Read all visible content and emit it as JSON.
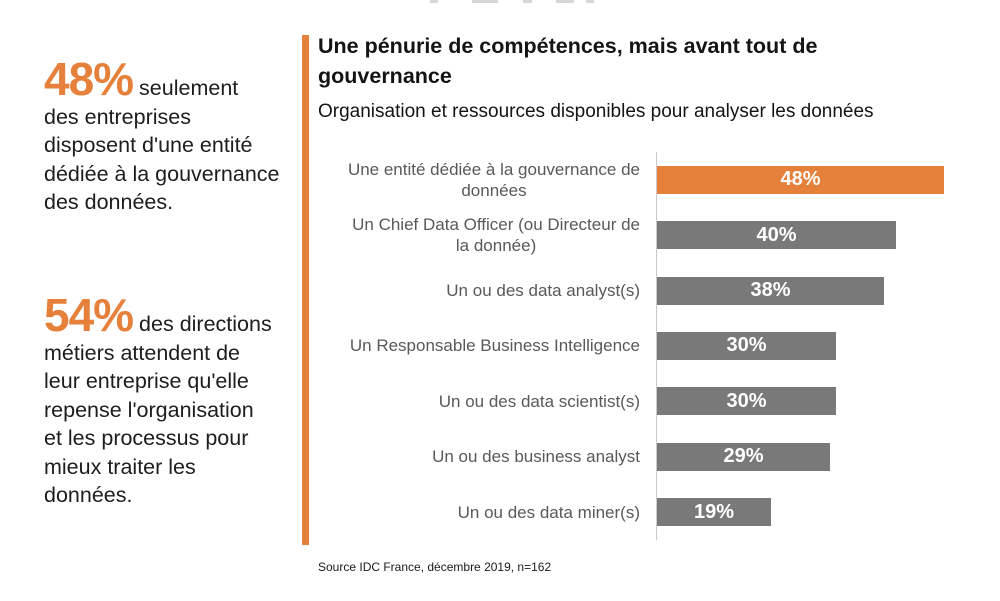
{
  "colors": {
    "accent_orange": "#E5813B",
    "bar_gray": "#797979",
    "category_label": "#595959",
    "axis_line": "#C9C9C9",
    "value_label": "#FFFFFF"
  },
  "left_panel": {
    "stat1": {
      "number": "48%",
      "rest": " seulement\ndes entreprises\ndisposent d'une entité\ndédiée à la gouvernance\ndes données."
    },
    "stat2": {
      "number": "54%",
      "rest": " des directions\nmétiers attendent de\nleur entreprise qu'elle\nrepense l'organisation\net les processus pour\nmieux traiter les\ndonnées."
    }
  },
  "header": {
    "title": "Une pénurie de compétences, mais avant tout de\ngouvernance",
    "subtitle": "Organisation et ressources disponibles pour analyser les données"
  },
  "chart_data": {
    "type": "bar",
    "orientation": "horizontal",
    "title": "Une pénurie de compétences, mais avant tout de gouvernance",
    "subtitle": "Organisation et ressources disponibles pour analyser les données",
    "categories": [
      "Une entité dédiée à la gouvernance de\ndonnées",
      "Un Chief Data Officer (ou Directeur de\nla donnée)",
      "Un ou des data analyst(s)",
      "Un Responsable Business Intelligence",
      "Un ou des data scientist(s)",
      "Un ou des business analyst",
      "Un ou des data miner(s)"
    ],
    "values": [
      48,
      40,
      38,
      30,
      30,
      29,
      19
    ],
    "value_labels": [
      "48%",
      "40%",
      "38%",
      "30%",
      "30%",
      "29%",
      "19%"
    ],
    "bar_colors": [
      "#E5813B",
      "#797979",
      "#797979",
      "#797979",
      "#797979",
      "#797979",
      "#797979"
    ],
    "xlim": [
      0,
      55
    ],
    "grid": false,
    "legend": false,
    "source": "Source IDC France, décembre 2019, n=162"
  }
}
